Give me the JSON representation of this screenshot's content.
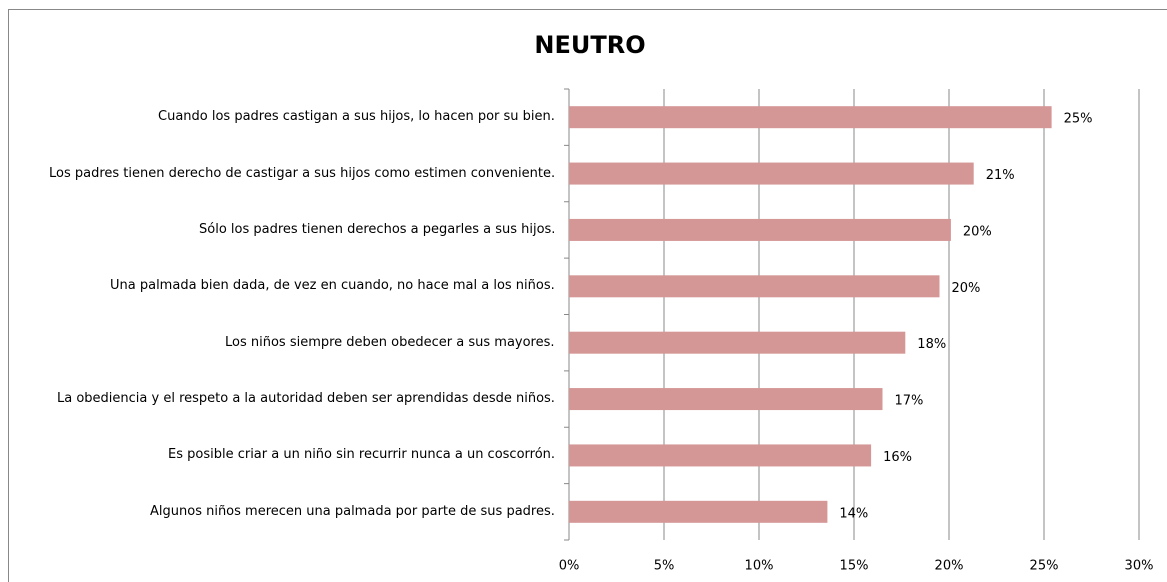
{
  "chart_data": {
    "type": "bar",
    "orientation": "horizontal",
    "title": "NEUTRO",
    "categories": [
      "Cuando los padres castigan a sus hijos, lo hacen por su bien.",
      "Los padres tienen derecho de castigar a sus hijos como estimen conveniente.",
      "Sólo los padres tienen derechos a pegarles a sus hijos.",
      "Una palmada bien dada, de vez en cuando, no hace mal a los niños.",
      "Los niños siempre deben obedecer a sus mayores.",
      "La obediencia y el respeto a la autoridad deben ser aprendidas desde niños.",
      "Es posible criar a un niño sin recurrir nunca a un coscorrón.",
      "Algunos niños merecen una palmada por parte de sus padres."
    ],
    "values": [
      25.4,
      21.3,
      20.1,
      19.5,
      17.7,
      16.5,
      15.9,
      13.6
    ],
    "value_labels": [
      "25%",
      "21%",
      "20%",
      "20%",
      "18%",
      "17%",
      "16%",
      "14%"
    ],
    "color": "#d49796",
    "xlim": [
      0,
      30
    ],
    "xticks": [
      {
        "value": 0,
        "label": "0%"
      },
      {
        "value": 5,
        "label": "5%"
      },
      {
        "value": 10,
        "label": "10%"
      },
      {
        "value": 15,
        "label": "15%"
      },
      {
        "value": 20,
        "label": "20%"
      },
      {
        "value": 25,
        "label": "25%"
      },
      {
        "value": 30,
        "label": "30%"
      }
    ],
    "grid": true
  }
}
